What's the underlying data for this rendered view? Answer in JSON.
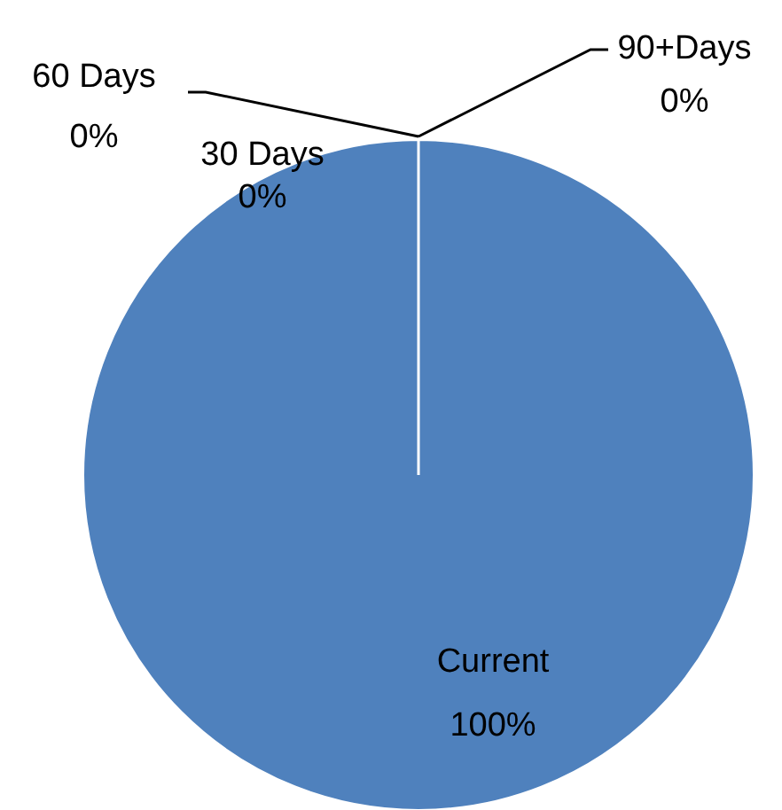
{
  "chart_data": {
    "type": "pie",
    "categories": [
      "Current",
      "30 Days",
      "60 Days",
      "90+Days"
    ],
    "values": [
      100,
      0,
      0,
      0
    ],
    "value_labels": [
      "100%",
      "0%",
      "0%",
      "0%"
    ],
    "colors": [
      "#4f81bd",
      "#c0504d",
      "#9bbb59",
      "#8064a2"
    ],
    "legend": false
  }
}
